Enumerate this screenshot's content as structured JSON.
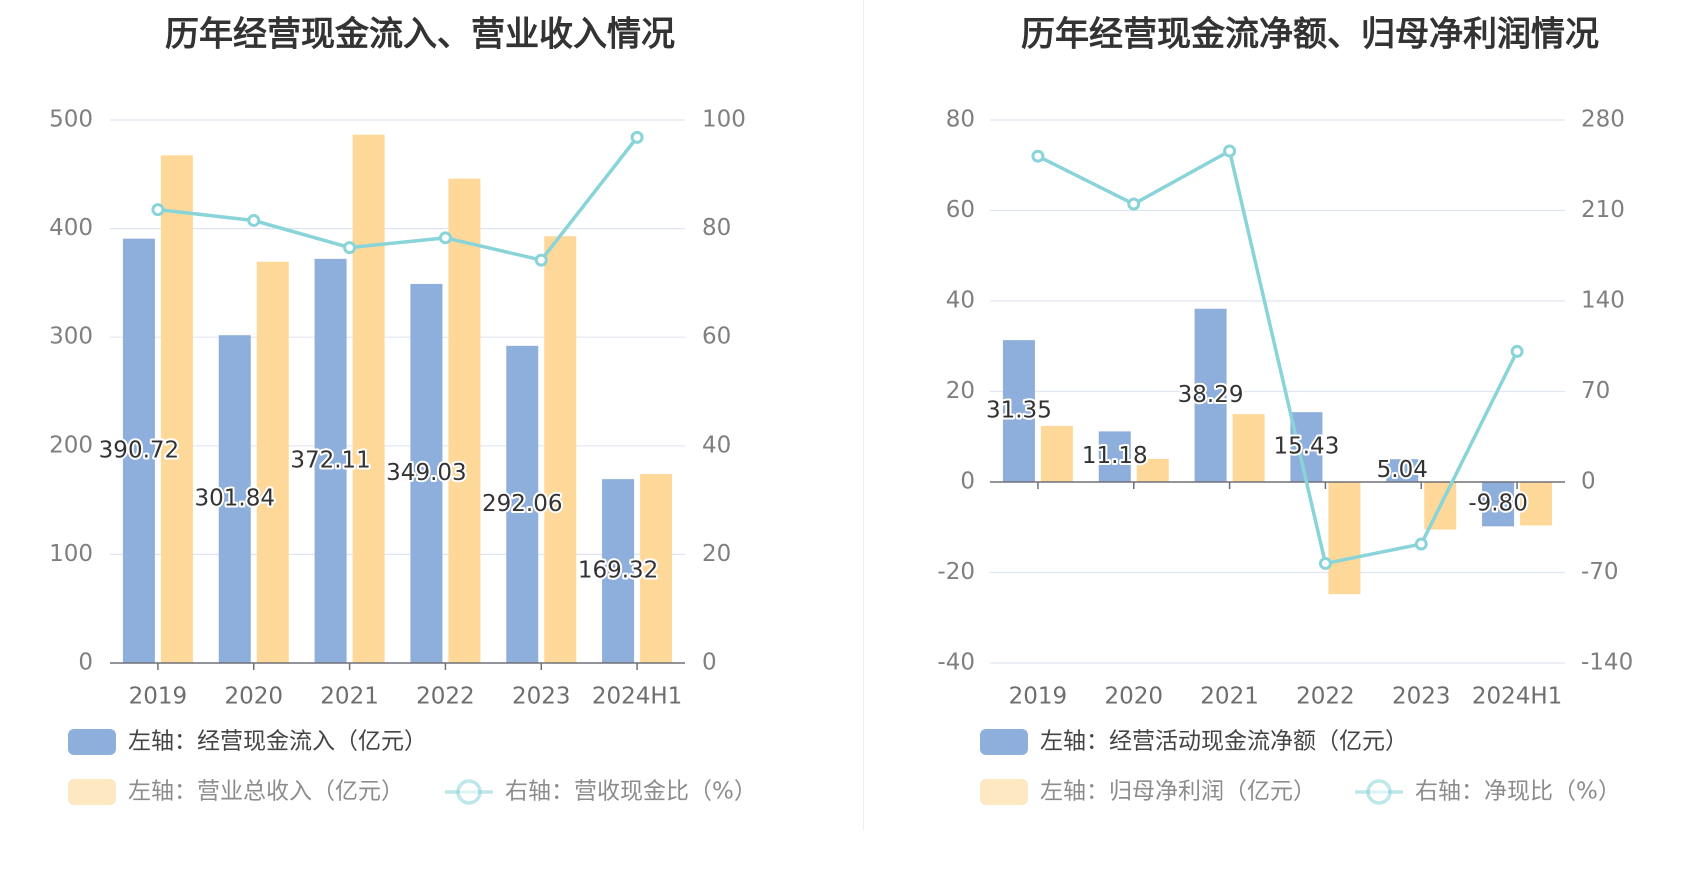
{
  "colors": {
    "blue": "#8eaedb",
    "orange": "#fed899",
    "line": "#88d4d8",
    "grid": "#e0e6f1",
    "axis": "#6e7079"
  },
  "chart_data": [
    {
      "type": "bar",
      "title": "历年经营现金流入、营业收入情况",
      "categories": [
        "2019",
        "2020",
        "2021",
        "2022",
        "2023",
        "2024H1"
      ],
      "left_axis": {
        "min": 0,
        "max": 500,
        "step": 100,
        "ticks": [
          "0",
          "100",
          "200",
          "300",
          "400",
          "500"
        ]
      },
      "right_axis": {
        "min": 0,
        "max": 100,
        "step": 20,
        "ticks": [
          "0",
          "20",
          "40",
          "60",
          "80",
          "100"
        ]
      },
      "series": [
        {
          "name": "左轴：经营现金流入（亿元）",
          "kind": "bar",
          "axis": "left",
          "color": "#8eaedb",
          "values": [
            390.72,
            301.84,
            372.11,
            349.03,
            292.06,
            169.32
          ],
          "labels": [
            "390.72",
            "301.84",
            "372.11",
            "349.03",
            "292.06",
            "169.32"
          ]
        },
        {
          "name": "左轴：营业总收入（亿元）",
          "kind": "bar",
          "axis": "left",
          "color": "#fed899",
          "values": [
            467.5,
            369.5,
            486.5,
            446.0,
            393.0,
            174.0
          ]
        },
        {
          "name": "右轴：营收现金比（%）",
          "kind": "line",
          "axis": "right",
          "color": "#88d4d8",
          "values": [
            83.5,
            81.5,
            76.5,
            78.3,
            74.2,
            96.8
          ]
        }
      ]
    },
    {
      "type": "bar",
      "title": "历年经营现金流净额、归母净利润情况",
      "categories": [
        "2019",
        "2020",
        "2021",
        "2022",
        "2023",
        "2024H1"
      ],
      "left_axis": {
        "min": -40,
        "max": 80,
        "step": 20,
        "ticks": [
          "-40",
          "-20",
          "0",
          "20",
          "40",
          "60",
          "80"
        ]
      },
      "right_axis": {
        "min": -140,
        "max": 280,
        "step": 70,
        "ticks": [
          "-140",
          "-70",
          "0",
          "70",
          "140",
          "210",
          "280"
        ]
      },
      "series": [
        {
          "name": "左轴：经营活动现金流净额（亿元）",
          "kind": "bar",
          "axis": "left",
          "color": "#8eaedb",
          "values": [
            31.35,
            11.18,
            38.29,
            15.43,
            5.04,
            -9.8
          ],
          "labels": [
            "31.35",
            "11.18",
            "38.29",
            "15.43",
            "5.04",
            "-9.80"
          ]
        },
        {
          "name": "左轴：归母净利润（亿元）",
          "kind": "bar",
          "axis": "left",
          "color": "#fed899",
          "values": [
            12.4,
            5.1,
            15.0,
            -24.8,
            -10.5,
            -9.6
          ]
        },
        {
          "name": "右轴：净现比（%）",
          "kind": "line",
          "axis": "right",
          "color": "#88d4d8",
          "values": [
            252.0,
            215.0,
            256.0,
            -63.0,
            -48.0,
            101.0
          ]
        }
      ]
    }
  ]
}
